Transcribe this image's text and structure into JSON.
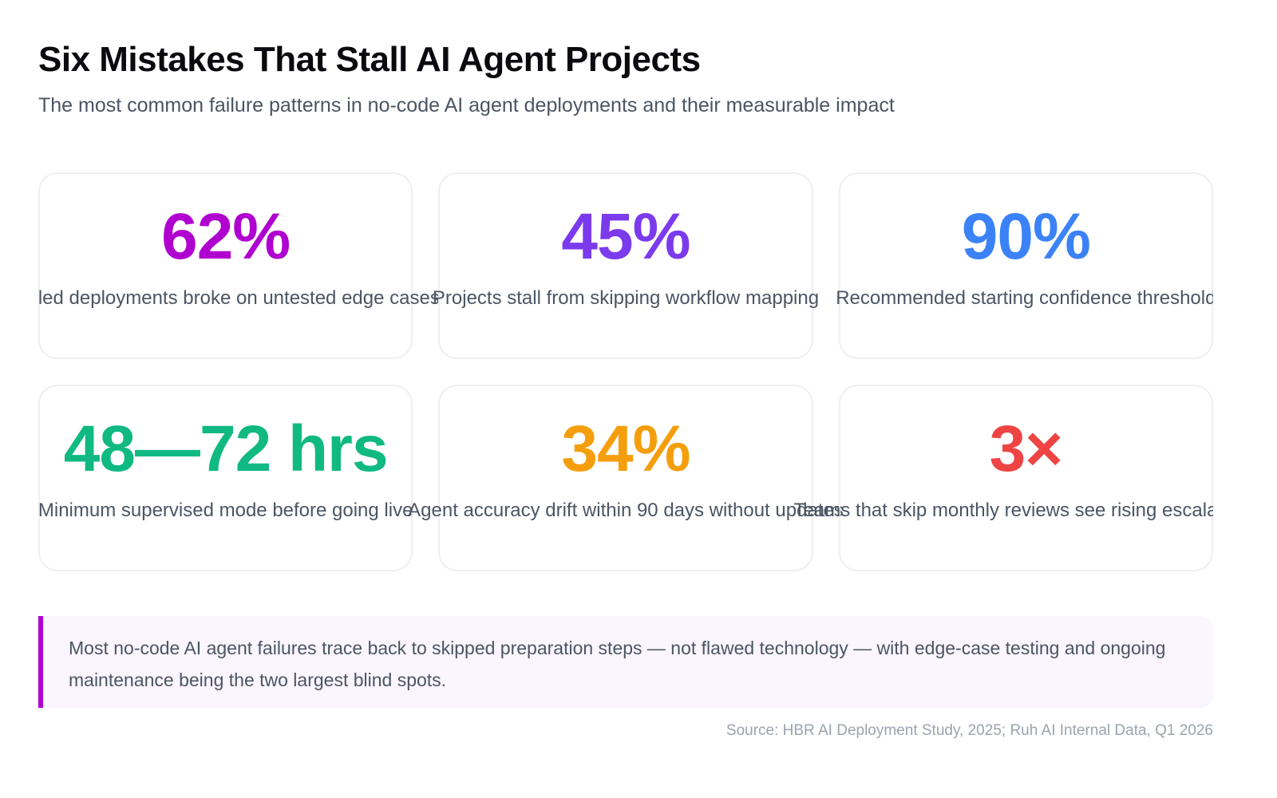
{
  "header": {
    "title": "Six Mistakes That Stall AI Agent Projects",
    "subtitle": "The most common failure patterns in no-code AI agent deployments and their measurable impact"
  },
  "cards": [
    {
      "value": "62%",
      "label": "Failed deployments broke on untested edge cases",
      "color": "#b000d0"
    },
    {
      "value": "45%",
      "label": "Projects stall from skipping workflow mapping",
      "color": "#7c3aed"
    },
    {
      "value": "90%",
      "label": "Recommended starting confidence threshold",
      "color": "#3b82f6"
    },
    {
      "value": "48—72 hrs",
      "label": "Minimum supervised mode before going live",
      "color": "#10b981"
    },
    {
      "value": "34%",
      "label": "Agent accuracy drift within 90 days without updates",
      "color": "#f59e0b"
    },
    {
      "value": "3×",
      "label": "Teams that skip monthly reviews see rising escalations",
      "color": "#ef4444"
    }
  ],
  "callout": {
    "text": "Most no-code AI agent failures trace back to skipped preparation steps — not flawed technology — with edge-case testing and ongoing maintenance being the two largest blind spots.",
    "accent": "#b000d0"
  },
  "source": "Source: HBR AI Deployment Study, 2025; Ruh AI Internal Data, Q1 2026"
}
